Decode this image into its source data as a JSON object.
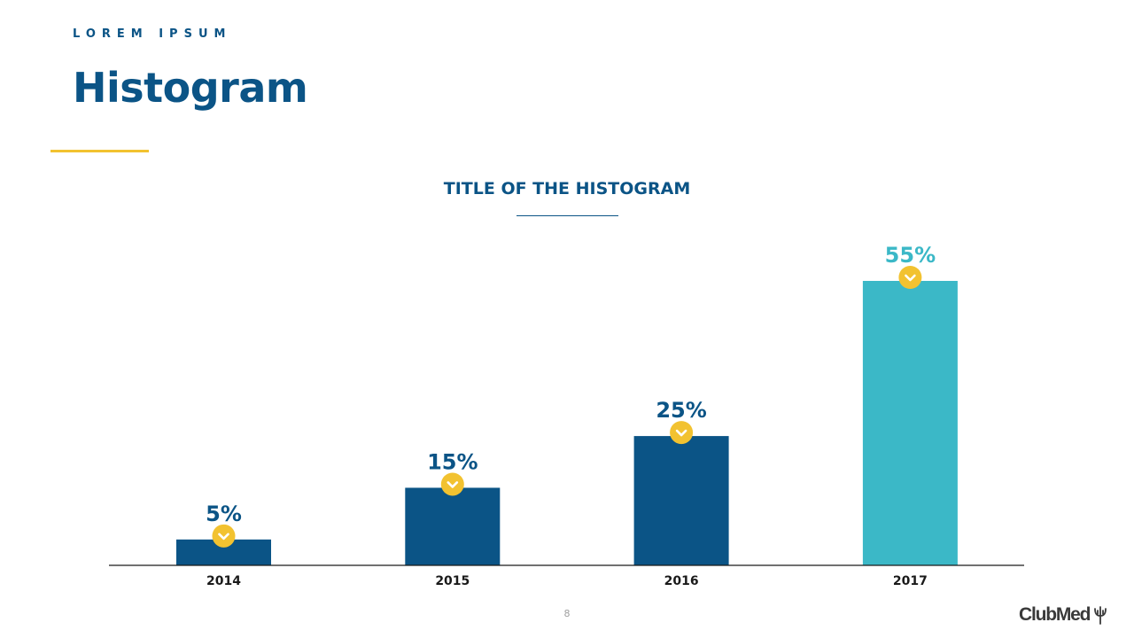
{
  "header": {
    "eyebrow": "LOREM IPSUM",
    "title": "Histogram"
  },
  "footer": {
    "page_number": "8",
    "logo_text": "ClubMed"
  },
  "colors": {
    "primary": "#0b5486",
    "highlight": "#3bb8c7",
    "accent": "#f2c230"
  },
  "chart_data": {
    "type": "bar",
    "title": "TITLE OF THE HISTOGRAM",
    "xlabel": "",
    "ylabel": "",
    "categories": [
      "2014",
      "2015",
      "2016",
      "2017"
    ],
    "values": [
      5,
      15,
      25,
      55
    ],
    "value_labels": [
      "5%",
      "15%",
      "25%",
      "55%"
    ],
    "highlighted": [
      false,
      false,
      false,
      true
    ],
    "ylim": [
      0,
      55
    ],
    "grid": false,
    "legend": "none",
    "marker_icon": "chevron-down-icon"
  }
}
